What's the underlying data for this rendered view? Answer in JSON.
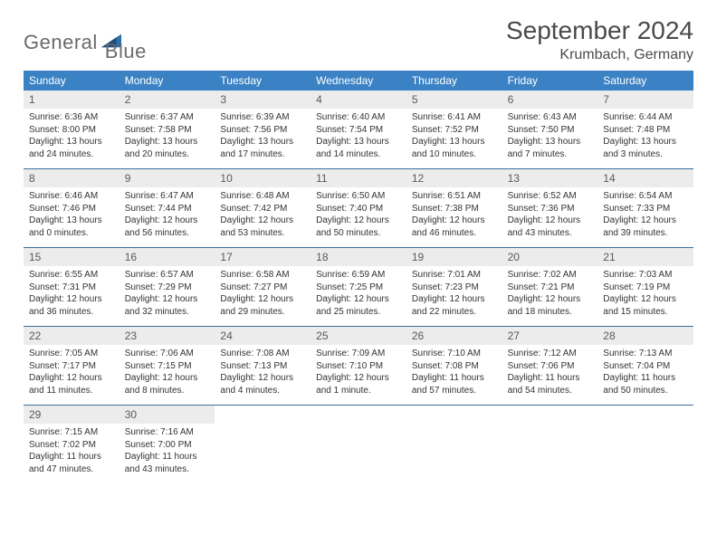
{
  "logo": {
    "text1": "General",
    "text2": "Blue"
  },
  "title": "September 2024",
  "location": "Krumbach, Germany",
  "colors": {
    "header_bg": "#3b82c4",
    "header_text": "#ffffff",
    "daynum_bg": "#ececec",
    "rule": "#3b6fa0",
    "logo_gray": "#6b6b6b",
    "logo_blue": "#2f6fa8"
  },
  "weekdays": [
    "Sunday",
    "Monday",
    "Tuesday",
    "Wednesday",
    "Thursday",
    "Friday",
    "Saturday"
  ],
  "weeks": [
    [
      {
        "n": "1",
        "sr": "Sunrise: 6:36 AM",
        "ss": "Sunset: 8:00 PM",
        "d1": "Daylight: 13 hours",
        "d2": "and 24 minutes."
      },
      {
        "n": "2",
        "sr": "Sunrise: 6:37 AM",
        "ss": "Sunset: 7:58 PM",
        "d1": "Daylight: 13 hours",
        "d2": "and 20 minutes."
      },
      {
        "n": "3",
        "sr": "Sunrise: 6:39 AM",
        "ss": "Sunset: 7:56 PM",
        "d1": "Daylight: 13 hours",
        "d2": "and 17 minutes."
      },
      {
        "n": "4",
        "sr": "Sunrise: 6:40 AM",
        "ss": "Sunset: 7:54 PM",
        "d1": "Daylight: 13 hours",
        "d2": "and 14 minutes."
      },
      {
        "n": "5",
        "sr": "Sunrise: 6:41 AM",
        "ss": "Sunset: 7:52 PM",
        "d1": "Daylight: 13 hours",
        "d2": "and 10 minutes."
      },
      {
        "n": "6",
        "sr": "Sunrise: 6:43 AM",
        "ss": "Sunset: 7:50 PM",
        "d1": "Daylight: 13 hours",
        "d2": "and 7 minutes."
      },
      {
        "n": "7",
        "sr": "Sunrise: 6:44 AM",
        "ss": "Sunset: 7:48 PM",
        "d1": "Daylight: 13 hours",
        "d2": "and 3 minutes."
      }
    ],
    [
      {
        "n": "8",
        "sr": "Sunrise: 6:46 AM",
        "ss": "Sunset: 7:46 PM",
        "d1": "Daylight: 13 hours",
        "d2": "and 0 minutes."
      },
      {
        "n": "9",
        "sr": "Sunrise: 6:47 AM",
        "ss": "Sunset: 7:44 PM",
        "d1": "Daylight: 12 hours",
        "d2": "and 56 minutes."
      },
      {
        "n": "10",
        "sr": "Sunrise: 6:48 AM",
        "ss": "Sunset: 7:42 PM",
        "d1": "Daylight: 12 hours",
        "d2": "and 53 minutes."
      },
      {
        "n": "11",
        "sr": "Sunrise: 6:50 AM",
        "ss": "Sunset: 7:40 PM",
        "d1": "Daylight: 12 hours",
        "d2": "and 50 minutes."
      },
      {
        "n": "12",
        "sr": "Sunrise: 6:51 AM",
        "ss": "Sunset: 7:38 PM",
        "d1": "Daylight: 12 hours",
        "d2": "and 46 minutes."
      },
      {
        "n": "13",
        "sr": "Sunrise: 6:52 AM",
        "ss": "Sunset: 7:36 PM",
        "d1": "Daylight: 12 hours",
        "d2": "and 43 minutes."
      },
      {
        "n": "14",
        "sr": "Sunrise: 6:54 AM",
        "ss": "Sunset: 7:33 PM",
        "d1": "Daylight: 12 hours",
        "d2": "and 39 minutes."
      }
    ],
    [
      {
        "n": "15",
        "sr": "Sunrise: 6:55 AM",
        "ss": "Sunset: 7:31 PM",
        "d1": "Daylight: 12 hours",
        "d2": "and 36 minutes."
      },
      {
        "n": "16",
        "sr": "Sunrise: 6:57 AM",
        "ss": "Sunset: 7:29 PM",
        "d1": "Daylight: 12 hours",
        "d2": "and 32 minutes."
      },
      {
        "n": "17",
        "sr": "Sunrise: 6:58 AM",
        "ss": "Sunset: 7:27 PM",
        "d1": "Daylight: 12 hours",
        "d2": "and 29 minutes."
      },
      {
        "n": "18",
        "sr": "Sunrise: 6:59 AM",
        "ss": "Sunset: 7:25 PM",
        "d1": "Daylight: 12 hours",
        "d2": "and 25 minutes."
      },
      {
        "n": "19",
        "sr": "Sunrise: 7:01 AM",
        "ss": "Sunset: 7:23 PM",
        "d1": "Daylight: 12 hours",
        "d2": "and 22 minutes."
      },
      {
        "n": "20",
        "sr": "Sunrise: 7:02 AM",
        "ss": "Sunset: 7:21 PM",
        "d1": "Daylight: 12 hours",
        "d2": "and 18 minutes."
      },
      {
        "n": "21",
        "sr": "Sunrise: 7:03 AM",
        "ss": "Sunset: 7:19 PM",
        "d1": "Daylight: 12 hours",
        "d2": "and 15 minutes."
      }
    ],
    [
      {
        "n": "22",
        "sr": "Sunrise: 7:05 AM",
        "ss": "Sunset: 7:17 PM",
        "d1": "Daylight: 12 hours",
        "d2": "and 11 minutes."
      },
      {
        "n": "23",
        "sr": "Sunrise: 7:06 AM",
        "ss": "Sunset: 7:15 PM",
        "d1": "Daylight: 12 hours",
        "d2": "and 8 minutes."
      },
      {
        "n": "24",
        "sr": "Sunrise: 7:08 AM",
        "ss": "Sunset: 7:13 PM",
        "d1": "Daylight: 12 hours",
        "d2": "and 4 minutes."
      },
      {
        "n": "25",
        "sr": "Sunrise: 7:09 AM",
        "ss": "Sunset: 7:10 PM",
        "d1": "Daylight: 12 hours",
        "d2": "and 1 minute."
      },
      {
        "n": "26",
        "sr": "Sunrise: 7:10 AM",
        "ss": "Sunset: 7:08 PM",
        "d1": "Daylight: 11 hours",
        "d2": "and 57 minutes."
      },
      {
        "n": "27",
        "sr": "Sunrise: 7:12 AM",
        "ss": "Sunset: 7:06 PM",
        "d1": "Daylight: 11 hours",
        "d2": "and 54 minutes."
      },
      {
        "n": "28",
        "sr": "Sunrise: 7:13 AM",
        "ss": "Sunset: 7:04 PM",
        "d1": "Daylight: 11 hours",
        "d2": "and 50 minutes."
      }
    ],
    [
      {
        "n": "29",
        "sr": "Sunrise: 7:15 AM",
        "ss": "Sunset: 7:02 PM",
        "d1": "Daylight: 11 hours",
        "d2": "and 47 minutes."
      },
      {
        "n": "30",
        "sr": "Sunrise: 7:16 AM",
        "ss": "Sunset: 7:00 PM",
        "d1": "Daylight: 11 hours",
        "d2": "and 43 minutes."
      },
      null,
      null,
      null,
      null,
      null
    ]
  ]
}
